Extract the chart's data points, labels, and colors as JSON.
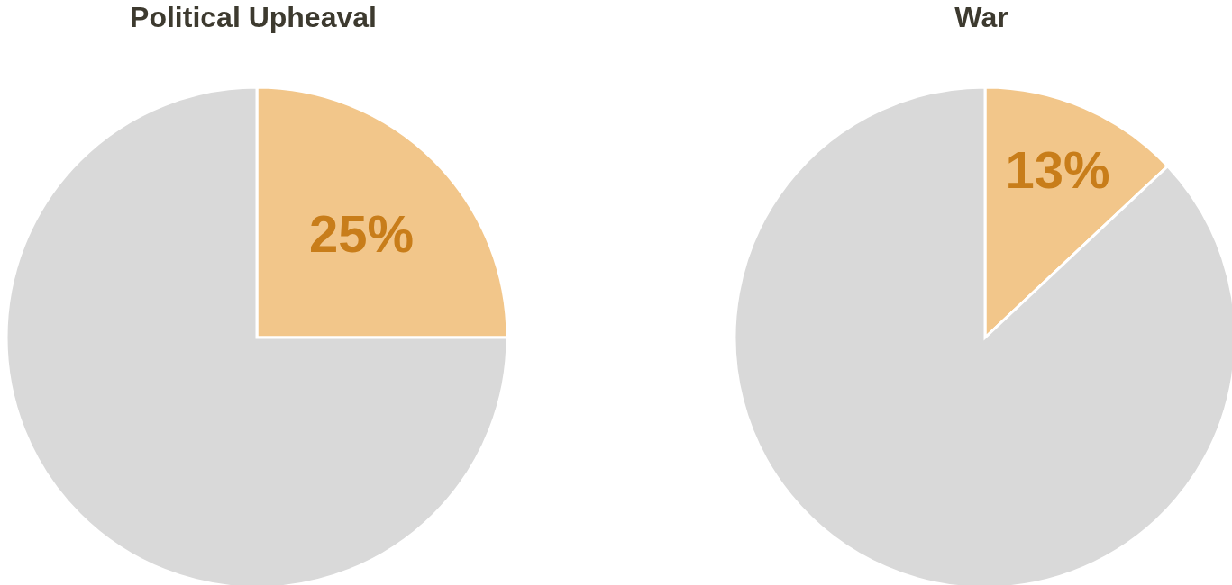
{
  "chart_data": [
    {
      "type": "pie",
      "title": "Political Upheaval",
      "categories": [
        null,
        null
      ],
      "values": [
        25,
        75
      ],
      "colors": [
        "#f2c68a",
        "#d9d9d9"
      ],
      "value_labels": [
        "25%",
        null
      ]
    },
    {
      "type": "pie",
      "title": "War",
      "categories": [
        null,
        null
      ],
      "values": [
        13,
        87
      ],
      "colors": [
        "#f2c68a",
        "#d9d9d9"
      ],
      "value_labels": [
        "13%",
        null
      ]
    }
  ]
}
